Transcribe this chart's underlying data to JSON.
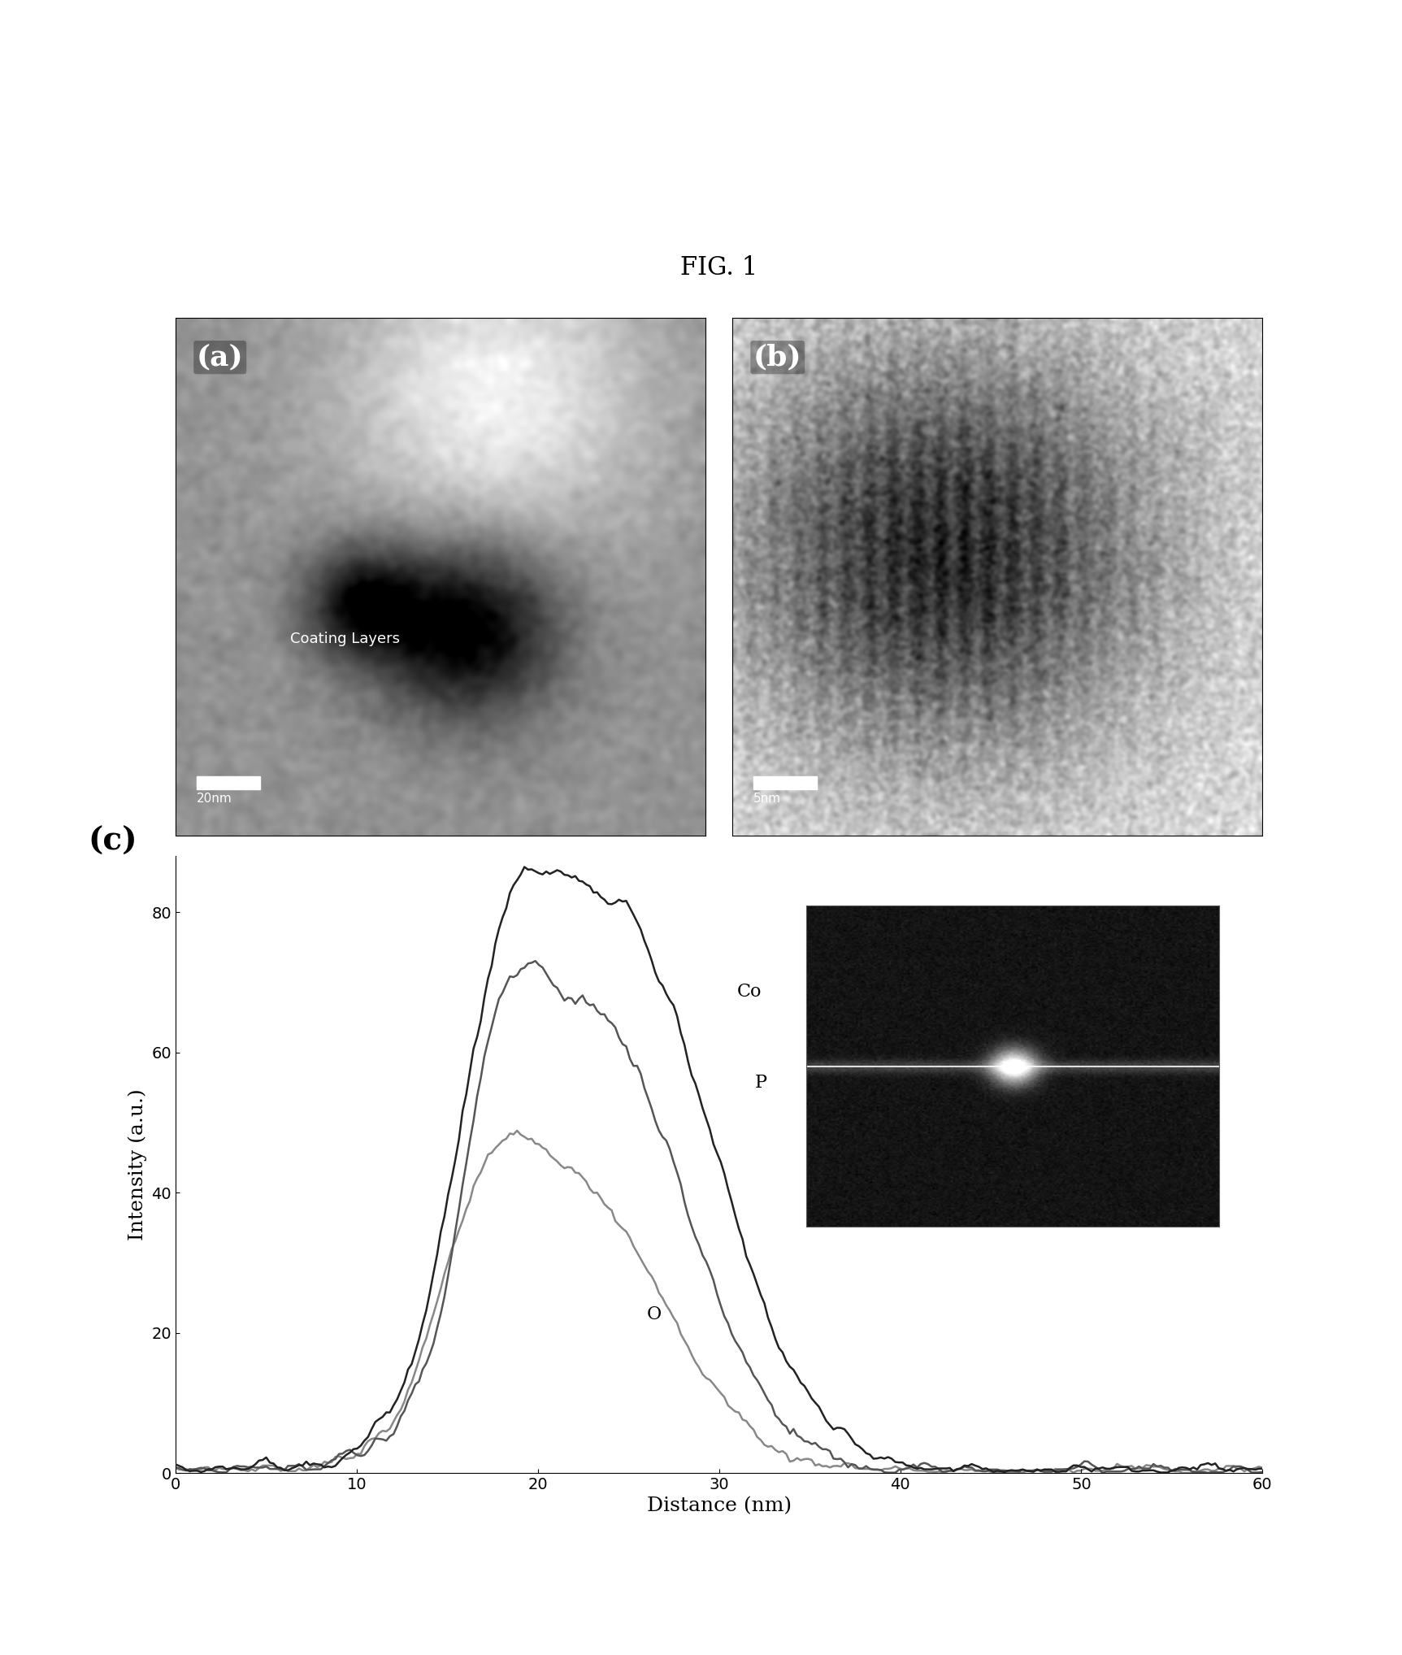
{
  "fig_title": "FIG. 1",
  "panel_a_label": "(a)",
  "panel_b_label": "(b)",
  "panel_c_label": "(c)",
  "panel_a_scalebar": "20nm",
  "panel_b_scalebar": "5nm",
  "xlabel": "Distance (nm)",
  "ylabel": "Intensity (a.u.)",
  "xlim": [
    0,
    60
  ],
  "ylim": [
    0,
    88
  ],
  "xticks": [
    0,
    10,
    20,
    30,
    40,
    50,
    60
  ],
  "yticks": [
    0,
    20,
    40,
    60,
    80
  ],
  "label_Co": "Co",
  "label_P": "P",
  "label_O": "O",
  "background_color": "#ffffff",
  "line_color_dark": "#222222",
  "line_color_mid": "#555555",
  "line_color_light": "#888888"
}
